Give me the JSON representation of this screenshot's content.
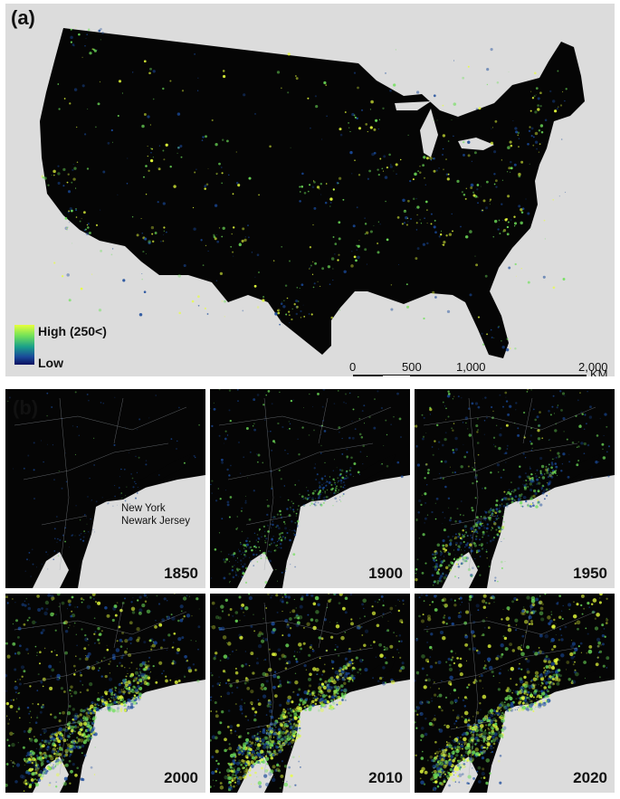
{
  "panel_a": {
    "label": "(a)",
    "legend": {
      "high": "High (250<)",
      "low": "Low"
    },
    "scalebar": {
      "ticks": [
        "0",
        "500",
        "1,000",
        "2,000"
      ],
      "unit": "KM"
    }
  },
  "panel_b": {
    "label": "(b)",
    "annotation_line1": "New York",
    "annotation_line2": "Newark Jersey",
    "years": [
      "1850",
      "1900",
      "1950",
      "2000",
      "2010",
      "2020"
    ],
    "brightness": [
      0.05,
      0.35,
      0.55,
      0.9,
      0.93,
      0.96
    ]
  },
  "colors": {
    "background": "#dcdcdc",
    "land": "#050505",
    "light_high": "#e7ff3c",
    "light_mid": "#6fe05a",
    "light_low": "#1a4a9a"
  }
}
